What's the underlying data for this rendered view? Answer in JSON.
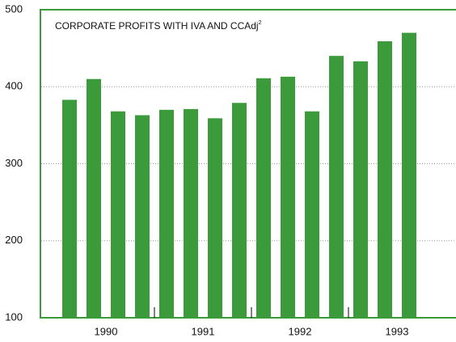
{
  "chart_data": {
    "type": "bar",
    "title": "CORPORATE PROFITS WITH IVA AND CCAdj",
    "title_superscript": "2",
    "year_labels": [
      "1990",
      "1991",
      "1992",
      "1993"
    ],
    "values": [
      383,
      410,
      368,
      363,
      370,
      371,
      359,
      379,
      411,
      413,
      368,
      440,
      433,
      459,
      470
    ],
    "color": "#3b9b3b",
    "ylim": [
      100,
      500
    ],
    "yticks": [
      100,
      200,
      300,
      400,
      500
    ],
    "grid": true
  }
}
